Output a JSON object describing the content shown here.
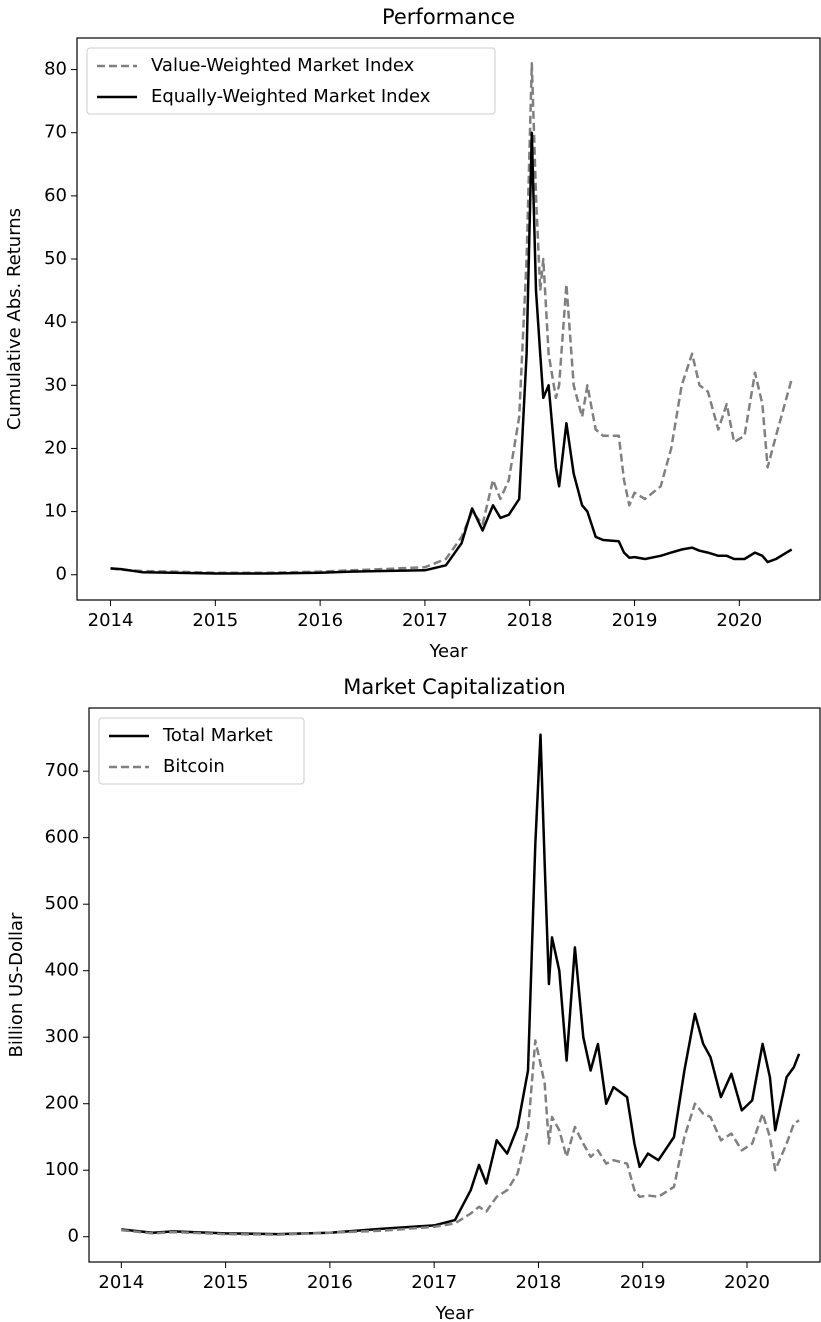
{
  "chart_data": [
    {
      "type": "line",
      "title": "Performance",
      "x_label": "Year",
      "y_label": "Cumulative Abs. Returns",
      "x": [
        2014.0,
        2014.1,
        2014.3,
        2014.6,
        2015.0,
        2015.5,
        2016.0,
        2016.3,
        2016.6,
        2017.0,
        2017.2,
        2017.35,
        2017.45,
        2017.55,
        2017.65,
        2017.72,
        2017.8,
        2017.9,
        2017.97,
        2018.02,
        2018.06,
        2018.1,
        2018.13,
        2018.18,
        2018.25,
        2018.28,
        2018.35,
        2018.42,
        2018.5,
        2018.55,
        2018.63,
        2018.7,
        2018.85,
        2018.9,
        2018.95,
        2019.0,
        2019.1,
        2019.25,
        2019.35,
        2019.45,
        2019.55,
        2019.62,
        2019.7,
        2019.8,
        2019.88,
        2019.95,
        2020.05,
        2020.15,
        2020.22,
        2020.27,
        2020.35,
        2020.45,
        2020.5
      ],
      "series": [
        {
          "name": "Value-Weighted Market Index",
          "color": "#808080",
          "style": "dashed",
          "values": [
            1.0,
            0.8,
            0.6,
            0.5,
            0.3,
            0.3,
            0.5,
            0.7,
            0.9,
            1.2,
            2.5,
            6,
            10,
            8,
            15,
            12,
            15,
            25,
            50,
            81,
            60,
            45,
            50,
            35,
            28,
            30,
            46,
            30,
            25,
            30,
            23,
            22,
            22,
            15,
            11,
            13,
            12,
            14,
            20,
            30,
            35,
            30,
            29,
            23,
            27,
            21,
            22,
            32,
            27,
            17,
            22,
            28,
            31
          ]
        },
        {
          "name": "Equally-Weighted Market Index",
          "color": "#000000",
          "style": "solid",
          "values": [
            1.0,
            0.9,
            0.4,
            0.3,
            0.2,
            0.2,
            0.3,
            0.5,
            0.6,
            0.7,
            1.5,
            5,
            10.5,
            7,
            11,
            9,
            9.5,
            12,
            35,
            70,
            45,
            35,
            28,
            30,
            17,
            14,
            24,
            16,
            11,
            10,
            6,
            5.5,
            5.3,
            3.5,
            2.7,
            2.8,
            2.5,
            3,
            3.5,
            4,
            4.3,
            3.8,
            3.5,
            3,
            3,
            2.5,
            2.5,
            3.5,
            3,
            2,
            2.5,
            3.5,
            4
          ]
        }
      ],
      "xlim": [
        2013.68,
        2020.77
      ],
      "xticks": [
        2014,
        2015,
        2016,
        2017,
        2018,
        2019,
        2020
      ],
      "ylim": [
        -4,
        85
      ],
      "yticks": [
        0,
        10,
        20,
        30,
        40,
        50,
        60,
        70,
        80
      ],
      "legend": "upper left"
    },
    {
      "type": "line",
      "title": "Market Capitalization",
      "x_label": "Year",
      "y_label": "Billion US-Dollar",
      "x": [
        2014.0,
        2014.3,
        2014.5,
        2015.0,
        2015.5,
        2016.0,
        2016.5,
        2017.0,
        2017.2,
        2017.35,
        2017.43,
        2017.5,
        2017.6,
        2017.7,
        2017.8,
        2017.9,
        2017.97,
        2018.02,
        2018.06,
        2018.1,
        2018.13,
        2018.2,
        2018.27,
        2018.35,
        2018.43,
        2018.5,
        2018.57,
        2018.65,
        2018.72,
        2018.85,
        2018.92,
        2018.97,
        2019.05,
        2019.15,
        2019.3,
        2019.4,
        2019.5,
        2019.58,
        2019.65,
        2019.75,
        2019.85,
        2019.95,
        2020.05,
        2020.15,
        2020.22,
        2020.27,
        2020.38,
        2020.45,
        2020.5
      ],
      "series": [
        {
          "name": "Total Market",
          "color": "#000000",
          "style": "solid",
          "values": [
            11,
            6,
            8,
            5,
            4,
            6,
            12,
            17,
            25,
            70,
            108,
            80,
            145,
            125,
            165,
            250,
            590,
            755,
            560,
            380,
            450,
            400,
            265,
            435,
            300,
            250,
            290,
            200,
            225,
            210,
            140,
            105,
            125,
            115,
            150,
            250,
            335,
            290,
            270,
            210,
            245,
            190,
            205,
            290,
            240,
            160,
            240,
            255,
            275
          ]
        },
        {
          "name": "Bitcoin",
          "color": "#808080",
          "style": "dashed",
          "values": [
            10,
            5,
            7,
            4,
            3,
            6,
            9,
            15,
            20,
            35,
            45,
            38,
            60,
            70,
            95,
            160,
            295,
            260,
            230,
            140,
            180,
            160,
            120,
            165,
            140,
            120,
            130,
            110,
            115,
            110,
            70,
            60,
            62,
            60,
            75,
            150,
            200,
            185,
            180,
            145,
            155,
            130,
            140,
            185,
            150,
            100,
            140,
            170,
            175
          ]
        }
      ],
      "xlim": [
        2013.69,
        2020.7
      ],
      "xticks": [
        2014,
        2015,
        2016,
        2017,
        2018,
        2019,
        2020
      ],
      "ylim": [
        -38,
        795
      ],
      "yticks": [
        0,
        100,
        200,
        300,
        400,
        500,
        600,
        700
      ],
      "legend": "upper left"
    }
  ]
}
